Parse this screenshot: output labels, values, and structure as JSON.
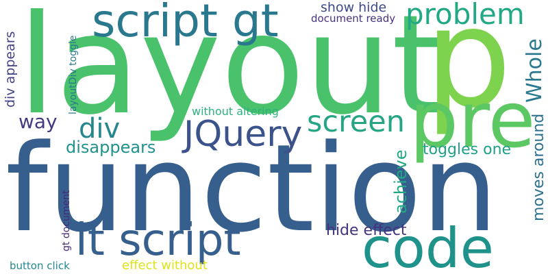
{
  "words": [
    {
      "text": "function",
      "color": "#365f8d",
      "vertical": false
    },
    {
      "text": "layout",
      "color": "#4ac26c",
      "vertical": false
    },
    {
      "text": "p",
      "color": "#7ed34e",
      "vertical": false
    },
    {
      "text": "pre",
      "color": "#5cc863",
      "vertical": false
    },
    {
      "text": "code",
      "color": "#20928c",
      "vertical": false
    },
    {
      "text": "lt script",
      "color": "#365f8d",
      "vertical": false
    },
    {
      "text": "script gt",
      "color": "#2a788e",
      "vertical": false
    },
    {
      "text": "JQuery",
      "color": "#3b528b",
      "vertical": false
    },
    {
      "text": "screen",
      "color": "#25a584",
      "vertical": false
    },
    {
      "text": "problem",
      "color": "#22a884",
      "vertical": false
    },
    {
      "text": "div",
      "color": "#24868e",
      "vertical": false
    },
    {
      "text": "Whole",
      "color": "#2a788e",
      "vertical": true
    },
    {
      "text": "way",
      "color": "#443a83",
      "vertical": false
    },
    {
      "text": "disappears",
      "color": "#21918c",
      "vertical": false
    },
    {
      "text": "achieve",
      "color": "#22a884",
      "vertical": true
    },
    {
      "text": "toggles one",
      "color": "#1fa088",
      "vertical": false
    },
    {
      "text": "moves around",
      "color": "#2c718e",
      "vertical": true
    },
    {
      "text": "hide effect",
      "color": "#46327e",
      "vertical": false
    },
    {
      "text": "show hide",
      "color": "#3e4989",
      "vertical": false
    },
    {
      "text": "document ready",
      "color": "#46317e",
      "vertical": false
    },
    {
      "text": "div appears",
      "color": "#414487",
      "vertical": true
    },
    {
      "text": "layoutDiv toggle",
      "color": "#2a788e",
      "vertical": true
    },
    {
      "text": "without altering",
      "color": "#2db27d",
      "vertical": false
    },
    {
      "text": "gt document",
      "color": "#482878",
      "vertical": true
    },
    {
      "text": "button click",
      "color": "#23888e",
      "vertical": false
    },
    {
      "text": "effect without",
      "color": "#dde318",
      "vertical": false
    }
  ]
}
